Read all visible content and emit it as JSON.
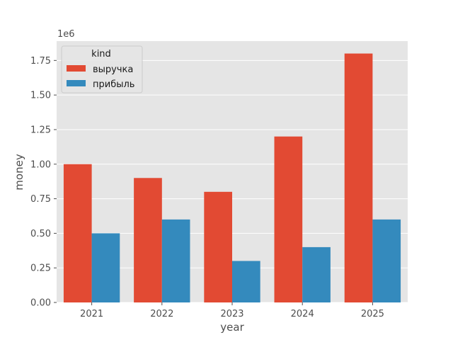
{
  "chart_data": {
    "type": "bar",
    "title": "",
    "xlabel": "year",
    "ylabel": "money",
    "offset_text": "1e6",
    "categories": [
      "2021",
      "2022",
      "2023",
      "2024",
      "2025"
    ],
    "series": [
      {
        "name": "выручка",
        "color": "#e24a33",
        "values": [
          1000000,
          900000,
          800000,
          1200000,
          1800000
        ]
      },
      {
        "name": "прибыль",
        "color": "#348abd",
        "values": [
          500000,
          600000,
          300000,
          400000,
          600000
        ]
      }
    ],
    "ylim": [
      0,
      1890000
    ],
    "yticks": [
      0,
      250000,
      500000,
      750000,
      1000000,
      1250000,
      1500000,
      1750000
    ],
    "ytick_labels": [
      "0.00",
      "0.25",
      "0.50",
      "0.75",
      "1.00",
      "1.25",
      "1.50",
      "1.75"
    ],
    "legend": {
      "title": "kind",
      "placement": "upper-left"
    },
    "grid": true,
    "style": {
      "plot_background": "#e5e5e5",
      "grid_color": "#ffffff"
    }
  }
}
